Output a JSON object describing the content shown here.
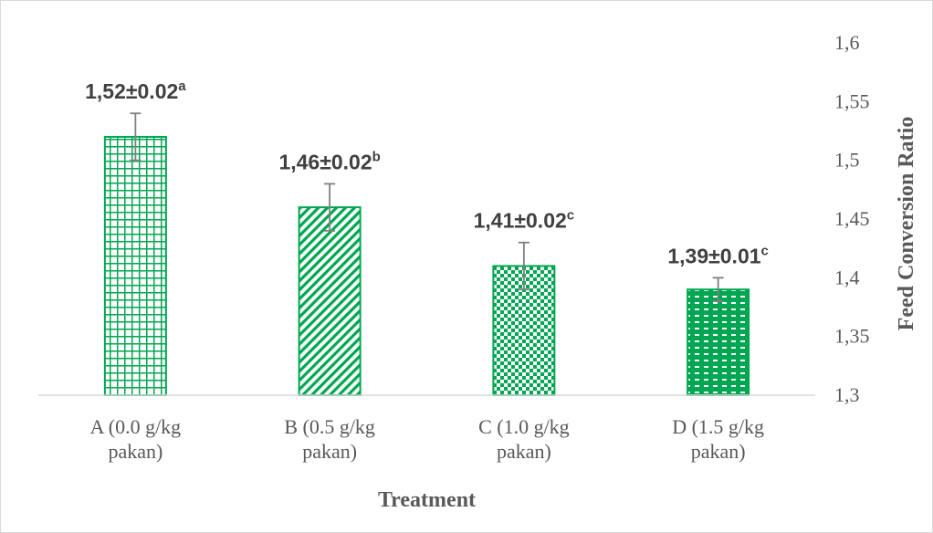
{
  "chart_data": {
    "type": "bar",
    "title": "",
    "xlabel": "Treatment",
    "ylabel": "Feed Conversion Ratio",
    "y_axis_side": "right",
    "ylim": [
      1.3,
      1.6
    ],
    "yticks": [
      1.3,
      1.35,
      1.4,
      1.45,
      1.5,
      1.55,
      1.6
    ],
    "ytick_labels": [
      "1,3",
      "1,35",
      "1,4",
      "1,45",
      "1,5",
      "1,55",
      "1,6"
    ],
    "grid": false,
    "legend": "none",
    "categories": [
      [
        "A (0.0 g/kg",
        "pakan)"
      ],
      [
        "B (0.5 g/kg",
        "pakan)"
      ],
      [
        "C (1.0 g/kg",
        "pakan)"
      ],
      [
        "D (1.5 g/kg",
        "pakan)"
      ]
    ],
    "values": [
      1.52,
      1.46,
      1.41,
      1.39
    ],
    "errors": [
      0.02,
      0.02,
      0.02,
      0.01
    ],
    "labels": [
      {
        "main": "1,52±0.02",
        "sup": "a"
      },
      {
        "main": "1,46±0.02",
        "sup": "b"
      },
      {
        "main": "1,41±0.02",
        "sup": "c"
      },
      {
        "main": "1,39±0.01",
        "sup": "c"
      }
    ],
    "patterns": [
      "grid",
      "diagonal",
      "checker",
      "dashed"
    ],
    "colors": {
      "bar": "#00a651",
      "axis": "#d9d9d9",
      "error_bar": "#7f7f7f",
      "text": "#595959",
      "label": "#404040"
    }
  }
}
